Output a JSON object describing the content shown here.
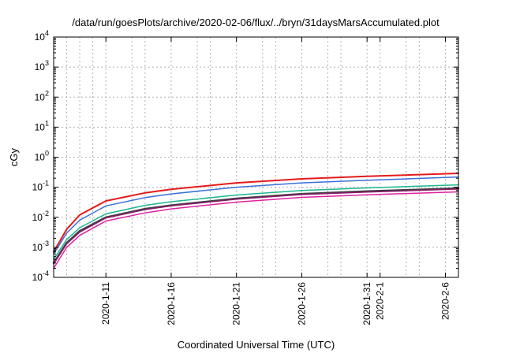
{
  "chart_data": {
    "type": "line",
    "title": "/data/run/goesPlots/archive/2020-02-06/flux/../bryn/31daysMarsAccumulated.plot",
    "xlabel": "Coordinated Universal Time (UTC)",
    "ylabel": "cGy",
    "y_scale": "log",
    "ylim": [
      0.0001,
      10000
    ],
    "xlim": [
      "2020-01-07",
      "2020-02-07"
    ],
    "x_tick_labels": [
      "2020-1-11",
      "2020-1-16",
      "2020-1-21",
      "2020-1-26",
      "2020-1-31",
      "2020-2-1",
      "2020-2-6"
    ],
    "x_tick_dates": [
      "2020-01-11",
      "2020-01-16",
      "2020-01-21",
      "2020-01-26",
      "2020-01-31",
      "2020-02-01",
      "2020-02-06"
    ],
    "y_ticks": [
      {
        "value": 0.0001,
        "base": "10",
        "exp": "-4"
      },
      {
        "value": 0.001,
        "base": "10",
        "exp": "-3"
      },
      {
        "value": 0.01,
        "base": "10",
        "exp": "-2"
      },
      {
        "value": 0.1,
        "base": "10",
        "exp": "-1"
      },
      {
        "value": 1,
        "base": "10",
        "exp": "0"
      },
      {
        "value": 10,
        "base": "10",
        "exp": "1"
      },
      {
        "value": 100,
        "base": "10",
        "exp": "2"
      },
      {
        "value": 1000,
        "base": "10",
        "exp": "3"
      },
      {
        "value": 10000,
        "base": "10",
        "exp": "4"
      }
    ],
    "grid": true,
    "x": [
      "2020-01-07",
      "2020-01-08",
      "2020-01-09",
      "2020-01-11",
      "2020-01-14",
      "2020-01-16",
      "2020-01-21",
      "2020-01-26",
      "2020-01-31",
      "2020-02-07"
    ],
    "series": [
      {
        "color": "#e41a1c",
        "width": 2,
        "values": [
          0.0007,
          0.004,
          0.012,
          0.035,
          0.065,
          0.085,
          0.14,
          0.19,
          0.23,
          0.29
        ]
      },
      {
        "color": "#3a6fd8",
        "width": 1.5,
        "values": [
          0.0006,
          0.003,
          0.008,
          0.024,
          0.045,
          0.06,
          0.1,
          0.14,
          0.17,
          0.22
        ]
      },
      {
        "color": "#1fb58f",
        "width": 1.5,
        "values": [
          0.0004,
          0.0018,
          0.0045,
          0.013,
          0.025,
          0.033,
          0.055,
          0.078,
          0.095,
          0.12
        ]
      },
      {
        "color": "#404040",
        "width": 2.5,
        "values": [
          0.0003,
          0.0014,
          0.0035,
          0.01,
          0.019,
          0.025,
          0.042,
          0.06,
          0.073,
          0.092
        ]
      },
      {
        "color": "#8a1a6b",
        "width": 1.5,
        "values": [
          0.00028,
          0.0013,
          0.0032,
          0.0095,
          0.018,
          0.024,
          0.04,
          0.057,
          0.069,
          0.087
        ]
      },
      {
        "color": "#e020a0",
        "width": 1.5,
        "values": [
          0.0002,
          0.001,
          0.0025,
          0.0075,
          0.014,
          0.019,
          0.032,
          0.046,
          0.056,
          0.07
        ]
      }
    ]
  }
}
